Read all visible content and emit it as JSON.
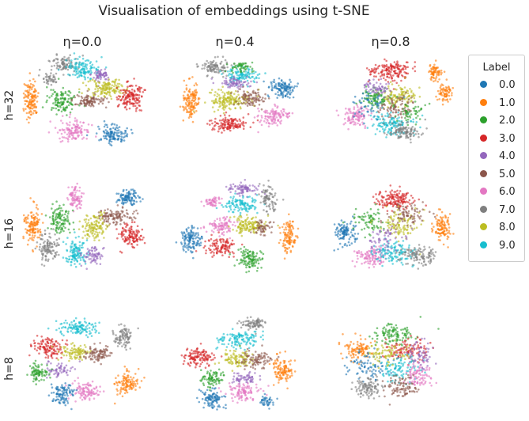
{
  "chart_data": {
    "type": "scatter",
    "title": "Visualisation of embeddings using t-SNE",
    "column_titles": [
      "η=0.0",
      "η=0.4",
      "η=0.8"
    ],
    "row_labels": [
      "h=32",
      "h=16",
      "h=8"
    ],
    "legend": {
      "title": "Label",
      "placement": "right",
      "entries": [
        {
          "label": "0.0",
          "color": "#1f77b4"
        },
        {
          "label": "1.0",
          "color": "#ff7f0e"
        },
        {
          "label": "2.0",
          "color": "#2ca02c"
        },
        {
          "label": "3.0",
          "color": "#d62728"
        },
        {
          "label": "4.0",
          "color": "#9467bd"
        },
        {
          "label": "5.0",
          "color": "#8c564b"
        },
        {
          "label": "6.0",
          "color": "#e377c2"
        },
        {
          "label": "7.0",
          "color": "#7f7f7f"
        },
        {
          "label": "8.0",
          "color": "#bcbd22"
        },
        {
          "label": "9.0",
          "color": "#17becf"
        }
      ]
    },
    "axes": "hidden",
    "grid": false,
    "panels": [
      {
        "row": 0,
        "col": 0,
        "clusters": [
          {
            "label": 1,
            "cx": 0.07,
            "cy": 0.45,
            "sx": 0.05,
            "sy": 0.17,
            "n": 130
          },
          {
            "label": 7,
            "cx": 0.33,
            "cy": 0.12,
            "sx": 0.1,
            "sy": 0.08,
            "n": 90
          },
          {
            "label": 9,
            "cx": 0.48,
            "cy": 0.16,
            "sx": 0.12,
            "sy": 0.08,
            "n": 120
          },
          {
            "label": 4,
            "cx": 0.62,
            "cy": 0.22,
            "sx": 0.07,
            "sy": 0.06,
            "n": 60
          },
          {
            "label": 7,
            "cx": 0.22,
            "cy": 0.25,
            "sx": 0.06,
            "sy": 0.05,
            "n": 40
          },
          {
            "label": 2,
            "cx": 0.32,
            "cy": 0.48,
            "sx": 0.1,
            "sy": 0.1,
            "n": 120
          },
          {
            "label": 5,
            "cx": 0.53,
            "cy": 0.47,
            "sx": 0.12,
            "sy": 0.06,
            "n": 100
          },
          {
            "label": 8,
            "cx": 0.66,
            "cy": 0.35,
            "sx": 0.13,
            "sy": 0.08,
            "n": 140
          },
          {
            "label": 3,
            "cx": 0.86,
            "cy": 0.43,
            "sx": 0.09,
            "sy": 0.12,
            "n": 150
          },
          {
            "label": 6,
            "cx": 0.41,
            "cy": 0.76,
            "sx": 0.12,
            "sy": 0.09,
            "n": 120
          },
          {
            "label": 0,
            "cx": 0.72,
            "cy": 0.8,
            "sx": 0.1,
            "sy": 0.08,
            "n": 120
          }
        ]
      },
      {
        "row": 0,
        "col": 1,
        "clusters": [
          {
            "label": 7,
            "cx": 0.32,
            "cy": 0.14,
            "sx": 0.1,
            "sy": 0.07,
            "n": 100
          },
          {
            "label": 9,
            "cx": 0.52,
            "cy": 0.22,
            "sx": 0.12,
            "sy": 0.07,
            "n": 110
          },
          {
            "label": 2,
            "cx": 0.53,
            "cy": 0.15,
            "sx": 0.08,
            "sy": 0.05,
            "n": 50
          },
          {
            "label": 4,
            "cx": 0.46,
            "cy": 0.3,
            "sx": 0.12,
            "sy": 0.05,
            "n": 70
          },
          {
            "label": 0,
            "cx": 0.85,
            "cy": 0.35,
            "sx": 0.08,
            "sy": 0.08,
            "n": 120
          },
          {
            "label": 1,
            "cx": 0.13,
            "cy": 0.48,
            "sx": 0.06,
            "sy": 0.17,
            "n": 130
          },
          {
            "label": 8,
            "cx": 0.43,
            "cy": 0.47,
            "sx": 0.15,
            "sy": 0.09,
            "n": 160
          },
          {
            "label": 5,
            "cx": 0.6,
            "cy": 0.45,
            "sx": 0.1,
            "sy": 0.07,
            "n": 90
          },
          {
            "label": 6,
            "cx": 0.78,
            "cy": 0.62,
            "sx": 0.11,
            "sy": 0.08,
            "n": 110
          },
          {
            "label": 3,
            "cx": 0.42,
            "cy": 0.7,
            "sx": 0.13,
            "sy": 0.07,
            "n": 130
          }
        ]
      },
      {
        "row": 0,
        "col": 2,
        "clusters": [
          {
            "label": 3,
            "cx": 0.47,
            "cy": 0.18,
            "sx": 0.15,
            "sy": 0.09,
            "n": 160
          },
          {
            "label": 1,
            "cx": 0.83,
            "cy": 0.2,
            "sx": 0.05,
            "sy": 0.07,
            "n": 70
          },
          {
            "label": 1,
            "cx": 0.9,
            "cy": 0.4,
            "sx": 0.05,
            "sy": 0.08,
            "n": 70
          },
          {
            "label": 2,
            "cx": 0.35,
            "cy": 0.45,
            "sx": 0.09,
            "sy": 0.1,
            "n": 90
          },
          {
            "label": 8,
            "cx": 0.55,
            "cy": 0.42,
            "sx": 0.12,
            "sy": 0.1,
            "n": 110
          },
          {
            "label": 4,
            "cx": 0.38,
            "cy": 0.35,
            "sx": 0.1,
            "sy": 0.06,
            "n": 60
          },
          {
            "label": 5,
            "cx": 0.52,
            "cy": 0.52,
            "sx": 0.15,
            "sy": 0.12,
            "n": 90
          },
          {
            "label": 6,
            "cx": 0.2,
            "cy": 0.63,
            "sx": 0.1,
            "sy": 0.1,
            "n": 100
          },
          {
            "label": 9,
            "cx": 0.48,
            "cy": 0.7,
            "sx": 0.14,
            "sy": 0.09,
            "n": 130
          },
          {
            "label": 7,
            "cx": 0.58,
            "cy": 0.77,
            "sx": 0.12,
            "sy": 0.07,
            "n": 110
          },
          {
            "label": 0,
            "cx": 0.3,
            "cy": 0.5,
            "sx": 0.12,
            "sy": 0.12,
            "n": 50
          },
          {
            "label": 2,
            "cx": 0.65,
            "cy": 0.58,
            "sx": 0.1,
            "sy": 0.1,
            "n": 50
          }
        ]
      },
      {
        "row": 1,
        "col": 0,
        "clusters": [
          {
            "label": 1,
            "cx": 0.08,
            "cy": 0.45,
            "sx": 0.06,
            "sy": 0.17,
            "n": 130
          },
          {
            "label": 6,
            "cx": 0.42,
            "cy": 0.18,
            "sx": 0.05,
            "sy": 0.1,
            "n": 80
          },
          {
            "label": 0,
            "cx": 0.84,
            "cy": 0.18,
            "sx": 0.08,
            "sy": 0.06,
            "n": 100
          },
          {
            "label": 2,
            "cx": 0.3,
            "cy": 0.4,
            "sx": 0.08,
            "sy": 0.12,
            "n": 110
          },
          {
            "label": 5,
            "cx": 0.74,
            "cy": 0.37,
            "sx": 0.14,
            "sy": 0.07,
            "n": 110
          },
          {
            "label": 8,
            "cx": 0.57,
            "cy": 0.47,
            "sx": 0.09,
            "sy": 0.12,
            "n": 120
          },
          {
            "label": 3,
            "cx": 0.85,
            "cy": 0.55,
            "sx": 0.09,
            "sy": 0.1,
            "n": 120
          },
          {
            "label": 7,
            "cx": 0.2,
            "cy": 0.66,
            "sx": 0.08,
            "sy": 0.12,
            "n": 110
          },
          {
            "label": 9,
            "cx": 0.43,
            "cy": 0.72,
            "sx": 0.08,
            "sy": 0.11,
            "n": 120
          },
          {
            "label": 4,
            "cx": 0.56,
            "cy": 0.75,
            "sx": 0.08,
            "sy": 0.08,
            "n": 70
          }
        ]
      },
      {
        "row": 1,
        "col": 1,
        "clusters": [
          {
            "label": 4,
            "cx": 0.55,
            "cy": 0.1,
            "sx": 0.12,
            "sy": 0.05,
            "n": 80
          },
          {
            "label": 6,
            "cx": 0.3,
            "cy": 0.22,
            "sx": 0.06,
            "sy": 0.05,
            "n": 50
          },
          {
            "label": 9,
            "cx": 0.53,
            "cy": 0.25,
            "sx": 0.12,
            "sy": 0.07,
            "n": 110
          },
          {
            "label": 7,
            "cx": 0.74,
            "cy": 0.18,
            "sx": 0.06,
            "sy": 0.12,
            "n": 80
          },
          {
            "label": 6,
            "cx": 0.37,
            "cy": 0.45,
            "sx": 0.1,
            "sy": 0.07,
            "n": 90
          },
          {
            "label": 8,
            "cx": 0.58,
            "cy": 0.45,
            "sx": 0.12,
            "sy": 0.08,
            "n": 130
          },
          {
            "label": 5,
            "cx": 0.7,
            "cy": 0.47,
            "sx": 0.08,
            "sy": 0.06,
            "n": 50
          },
          {
            "label": 0,
            "cx": 0.13,
            "cy": 0.6,
            "sx": 0.07,
            "sy": 0.12,
            "n": 120
          },
          {
            "label": 3,
            "cx": 0.37,
            "cy": 0.65,
            "sx": 0.12,
            "sy": 0.08,
            "n": 110
          },
          {
            "label": 2,
            "cx": 0.59,
            "cy": 0.78,
            "sx": 0.09,
            "sy": 0.09,
            "n": 110
          },
          {
            "label": 1,
            "cx": 0.9,
            "cy": 0.58,
            "sx": 0.05,
            "sy": 0.15,
            "n": 110
          }
        ]
      },
      {
        "row": 1,
        "col": 2,
        "clusters": [
          {
            "label": 3,
            "cx": 0.5,
            "cy": 0.2,
            "sx": 0.14,
            "sy": 0.09,
            "n": 150
          },
          {
            "label": 0,
            "cx": 0.12,
            "cy": 0.52,
            "sx": 0.07,
            "sy": 0.1,
            "n": 110
          },
          {
            "label": 1,
            "cx": 0.88,
            "cy": 0.47,
            "sx": 0.06,
            "sy": 0.13,
            "n": 110
          },
          {
            "label": 2,
            "cx": 0.3,
            "cy": 0.4,
            "sx": 0.12,
            "sy": 0.12,
            "n": 70
          },
          {
            "label": 8,
            "cx": 0.55,
            "cy": 0.45,
            "sx": 0.15,
            "sy": 0.12,
            "n": 100
          },
          {
            "label": 5,
            "cx": 0.6,
            "cy": 0.35,
            "sx": 0.15,
            "sy": 0.1,
            "n": 80
          },
          {
            "label": 6,
            "cx": 0.32,
            "cy": 0.75,
            "sx": 0.11,
            "sy": 0.08,
            "n": 110
          },
          {
            "label": 9,
            "cx": 0.5,
            "cy": 0.72,
            "sx": 0.14,
            "sy": 0.1,
            "n": 120
          },
          {
            "label": 7,
            "cx": 0.7,
            "cy": 0.75,
            "sx": 0.12,
            "sy": 0.09,
            "n": 110
          },
          {
            "label": 4,
            "cx": 0.45,
            "cy": 0.58,
            "sx": 0.15,
            "sy": 0.1,
            "n": 60
          }
        ]
      },
      {
        "row": 2,
        "col": 0,
        "clusters": [
          {
            "label": 9,
            "cx": 0.45,
            "cy": 0.14,
            "sx": 0.15,
            "sy": 0.07,
            "n": 120
          },
          {
            "label": 7,
            "cx": 0.8,
            "cy": 0.22,
            "sx": 0.07,
            "sy": 0.1,
            "n": 90
          },
          {
            "label": 3,
            "cx": 0.2,
            "cy": 0.32,
            "sx": 0.1,
            "sy": 0.1,
            "n": 120
          },
          {
            "label": 8,
            "cx": 0.42,
            "cy": 0.38,
            "sx": 0.1,
            "sy": 0.07,
            "n": 90
          },
          {
            "label": 5,
            "cx": 0.6,
            "cy": 0.4,
            "sx": 0.1,
            "sy": 0.08,
            "n": 90
          },
          {
            "label": 4,
            "cx": 0.3,
            "cy": 0.55,
            "sx": 0.1,
            "sy": 0.07,
            "n": 60
          },
          {
            "label": 2,
            "cx": 0.13,
            "cy": 0.58,
            "sx": 0.07,
            "sy": 0.08,
            "n": 80
          },
          {
            "label": 6,
            "cx": 0.5,
            "cy": 0.76,
            "sx": 0.1,
            "sy": 0.08,
            "n": 100
          },
          {
            "label": 0,
            "cx": 0.32,
            "cy": 0.78,
            "sx": 0.08,
            "sy": 0.1,
            "n": 100
          },
          {
            "label": 1,
            "cx": 0.82,
            "cy": 0.68,
            "sx": 0.08,
            "sy": 0.1,
            "n": 110
          }
        ]
      },
      {
        "row": 2,
        "col": 1,
        "clusters": [
          {
            "label": 7,
            "cx": 0.62,
            "cy": 0.1,
            "sx": 0.1,
            "sy": 0.05,
            "n": 80
          },
          {
            "label": 9,
            "cx": 0.5,
            "cy": 0.25,
            "sx": 0.15,
            "sy": 0.08,
            "n": 120
          },
          {
            "label": 3,
            "cx": 0.2,
            "cy": 0.43,
            "sx": 0.12,
            "sy": 0.08,
            "n": 120
          },
          {
            "label": 8,
            "cx": 0.48,
            "cy": 0.45,
            "sx": 0.1,
            "sy": 0.08,
            "n": 90
          },
          {
            "label": 5,
            "cx": 0.65,
            "cy": 0.45,
            "sx": 0.12,
            "sy": 0.08,
            "n": 90
          },
          {
            "label": 1,
            "cx": 0.86,
            "cy": 0.55,
            "sx": 0.07,
            "sy": 0.12,
            "n": 110
          },
          {
            "label": 2,
            "cx": 0.3,
            "cy": 0.62,
            "sx": 0.1,
            "sy": 0.07,
            "n": 80
          },
          {
            "label": 4,
            "cx": 0.55,
            "cy": 0.63,
            "sx": 0.1,
            "sy": 0.06,
            "n": 60
          },
          {
            "label": 6,
            "cx": 0.53,
            "cy": 0.77,
            "sx": 0.12,
            "sy": 0.07,
            "n": 100
          },
          {
            "label": 0,
            "cx": 0.3,
            "cy": 0.83,
            "sx": 0.08,
            "sy": 0.08,
            "n": 100
          },
          {
            "label": 0,
            "cx": 0.72,
            "cy": 0.85,
            "sx": 0.06,
            "sy": 0.05,
            "n": 40
          }
        ]
      },
      {
        "row": 2,
        "col": 2,
        "clusters": [
          {
            "label": 2,
            "cx": 0.5,
            "cy": 0.2,
            "sx": 0.15,
            "sy": 0.1,
            "n": 110
          },
          {
            "label": 1,
            "cx": 0.22,
            "cy": 0.35,
            "sx": 0.1,
            "sy": 0.1,
            "n": 100
          },
          {
            "label": 3,
            "cx": 0.6,
            "cy": 0.35,
            "sx": 0.15,
            "sy": 0.1,
            "n": 110
          },
          {
            "label": 0,
            "cx": 0.3,
            "cy": 0.5,
            "sx": 0.15,
            "sy": 0.12,
            "n": 80
          },
          {
            "label": 9,
            "cx": 0.55,
            "cy": 0.55,
            "sx": 0.15,
            "sy": 0.12,
            "n": 100
          },
          {
            "label": 6,
            "cx": 0.7,
            "cy": 0.6,
            "sx": 0.1,
            "sy": 0.1,
            "n": 90
          },
          {
            "label": 8,
            "cx": 0.45,
            "cy": 0.4,
            "sx": 0.15,
            "sy": 0.1,
            "n": 80
          },
          {
            "label": 7,
            "cx": 0.3,
            "cy": 0.72,
            "sx": 0.1,
            "sy": 0.1,
            "n": 100
          },
          {
            "label": 5,
            "cx": 0.55,
            "cy": 0.72,
            "sx": 0.12,
            "sy": 0.1,
            "n": 90
          },
          {
            "label": 4,
            "cx": 0.7,
            "cy": 0.4,
            "sx": 0.1,
            "sy": 0.12,
            "n": 60
          }
        ]
      }
    ]
  }
}
